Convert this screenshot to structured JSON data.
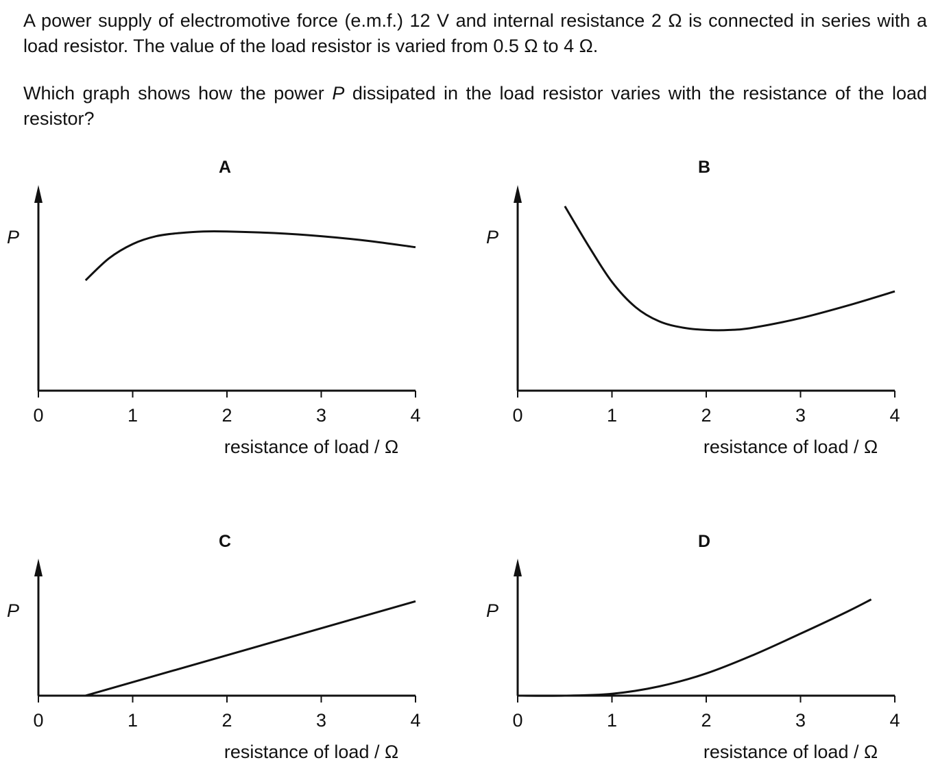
{
  "question": {
    "line1_prefix": "A power supply of electromotive force (e.m.f.) 12 V and internal resistance 2 Ω is connected in series with a load resistor. The value of the load resistor is varied from 0.5 Ω to 4 Ω.",
    "line2_before": "Which graph shows how the power ",
    "line2_var": "P",
    "line2_after": " dissipated in the load resistor varies with the resistance of the load resistor?"
  },
  "chart_data": [
    {
      "panel": "A",
      "type": "line",
      "xlabel": "resistance of load / Ω",
      "ylabel": "P",
      "xlim": [
        0,
        4
      ],
      "ylim": [
        0,
        1.2
      ],
      "xticks": [
        "0",
        "1",
        "2",
        "3",
        "4"
      ],
      "x": [
        0.5,
        0.75,
        1.0,
        1.25,
        1.5,
        1.75,
        2.0,
        2.5,
        3.0,
        3.5,
        4.0
      ],
      "y": [
        0.7,
        0.84,
        0.93,
        0.98,
        1.0,
        1.01,
        1.01,
        1.0,
        0.98,
        0.95,
        0.91
      ]
    },
    {
      "panel": "B",
      "type": "line",
      "xlabel": "resistance of load / Ω",
      "ylabel": "P",
      "xlim": [
        0,
        4
      ],
      "ylim": [
        0,
        1.2
      ],
      "xticks": [
        "0",
        "1",
        "2",
        "3",
        "4"
      ],
      "x": [
        0.5,
        0.75,
        1.0,
        1.25,
        1.5,
        1.75,
        2.0,
        2.25,
        2.5,
        3.0,
        3.5,
        4.0
      ],
      "y": [
        1.17,
        0.92,
        0.69,
        0.53,
        0.44,
        0.4,
        0.385,
        0.385,
        0.4,
        0.46,
        0.54,
        0.63
      ]
    },
    {
      "panel": "C",
      "type": "line",
      "xlabel": "resistance of load / Ω",
      "ylabel": "P",
      "xlim": [
        0,
        4
      ],
      "ylim": [
        0,
        1.2
      ],
      "xticks": [
        "0",
        "1",
        "2",
        "3",
        "4"
      ],
      "x": [
        0.0,
        0.5,
        4.0
      ],
      "y": [
        0.0,
        0.0,
        1.02
      ]
    },
    {
      "panel": "D",
      "type": "line",
      "xlabel": "resistance of load / Ω",
      "ylabel": "P",
      "xlim": [
        0,
        4
      ],
      "ylim": [
        0,
        1.2
      ],
      "xticks": [
        "0",
        "1",
        "2",
        "3",
        "4"
      ],
      "x": [
        0.0,
        0.5,
        1.0,
        1.5,
        2.0,
        2.5,
        3.0,
        3.5,
        3.75
      ],
      "y": [
        0.0,
        0.0,
        0.02,
        0.1,
        0.24,
        0.44,
        0.67,
        0.91,
        1.04
      ]
    }
  ]
}
